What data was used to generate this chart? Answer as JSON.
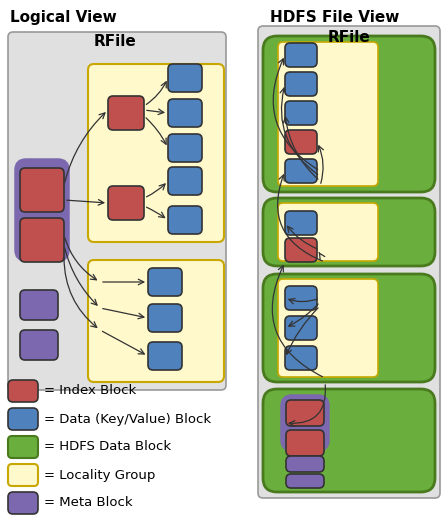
{
  "title_left": "Logical View",
  "title_right": "HDFS File View",
  "rfile_label": "RFile",
  "colors": {
    "index_block": "#C0504D",
    "data_block": "#4F81BD",
    "hdfs_block": "#6AAF3D",
    "locality_group_face": "#FFF9CC",
    "locality_group_edge": "#C8A800",
    "meta_block": "#7B68AE",
    "bg_panel": "#E0E0E0",
    "bg_panel_edge": "#999999",
    "arrow": "#333333",
    "hdfs_edge": "#4A7A1E"
  },
  "legend": [
    {
      "color": "#C0504D",
      "label": "= Index Block",
      "type": "block"
    },
    {
      "color": "#4F81BD",
      "label": "= Data (Key/Value) Block",
      "type": "block"
    },
    {
      "color": "#6AAF3D",
      "label": "= HDFS Data Block",
      "type": "hdfs"
    },
    {
      "color": "#FFF9CC",
      "label": "= Locality Group",
      "type": "locality"
    },
    {
      "color": "#7B68AE",
      "label": "= Meta Block",
      "type": "block"
    }
  ]
}
